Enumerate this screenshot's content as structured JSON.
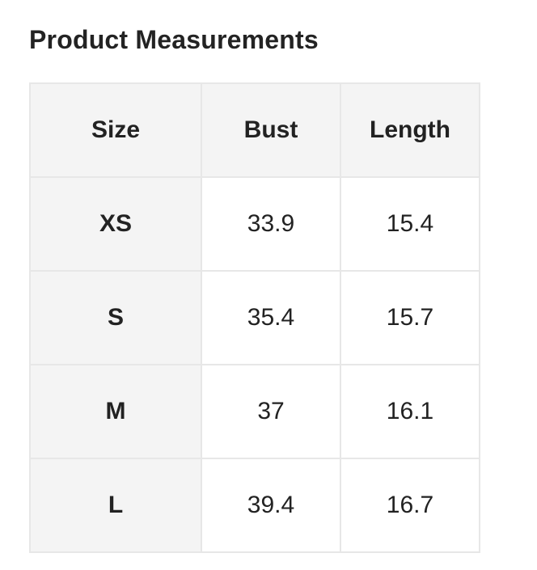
{
  "page": {
    "title": "Product Measurements"
  },
  "table": {
    "headers": [
      {
        "label": "Size"
      },
      {
        "label": "Bust"
      },
      {
        "label": "Length"
      }
    ],
    "rows": [
      {
        "size": "XS",
        "bust": "33.9",
        "length": "15.4"
      },
      {
        "size": "S",
        "bust": "35.4",
        "length": "15.7"
      },
      {
        "size": "M",
        "bust": "37",
        "length": "16.1"
      },
      {
        "size": "L",
        "bust": "39.4",
        "length": "16.7"
      }
    ]
  },
  "colors": {
    "page_background": "#ffffff",
    "header_cell_background": "#f4f4f4",
    "body_cell_background": "#ffffff",
    "border": "#e7e7e7",
    "text": "#222222"
  }
}
